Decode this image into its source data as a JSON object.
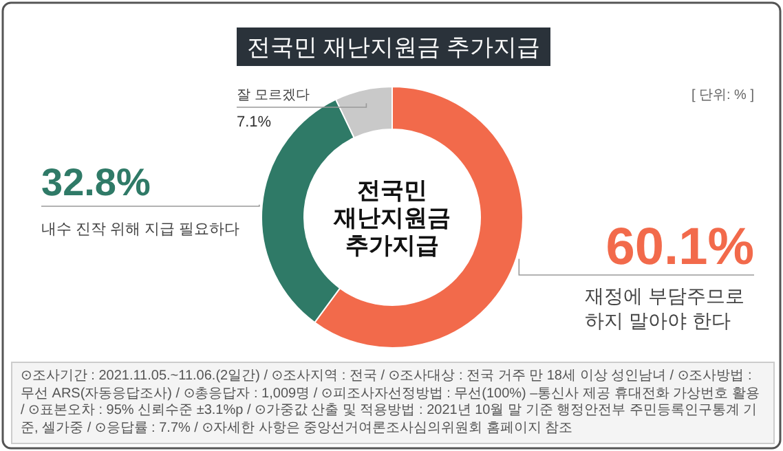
{
  "chart_data": {
    "type": "donut",
    "title": "전국민 재난지원금 추가지급",
    "categories": [
      "재정에 부담주므로\n하지 말아야 한다",
      "내수 진작 위해 지급 필요하다",
      "잘 모르겠다"
    ],
    "values": [
      60.1,
      32.8,
      7.1
    ],
    "value_labels": [
      "60.1%",
      "32.8%",
      "7.1%"
    ],
    "colors": [
      "#f26a4b",
      "#2f7a67",
      "#c9c9c9"
    ],
    "annotations": [
      "전국민\n재난지원금\n추가지급",
      "[ 단위: % ]",
      "⊙조사기간 : 2021.11.05.~11.06.(2일간) / ⊙조사지역 : 전국 / ⊙조사대상 : 전국 거주 만 18세 이상 성인남녀 / ⊙조사방법 : 무선 ARS(자동응답조사) / ⊙총응답자 : 1,009명 / ⊙피조사자선정방법 : 무선(100%) –통신사 제공 휴대전화 가상번호 활용 / ⊙표본오차 : 95% 신뢰수준 ±3.1%p / ⊙가중값 산출 및 적용방법 : 2021년 10월 말 기준 행정안전부 주민등록인구통계 기준, 셀가중 / ⊙응답률 : 7.7% / ⊙자세한 사항은 중앙선거여론조사심의위원회 홈페이지 참조"
    ]
  }
}
